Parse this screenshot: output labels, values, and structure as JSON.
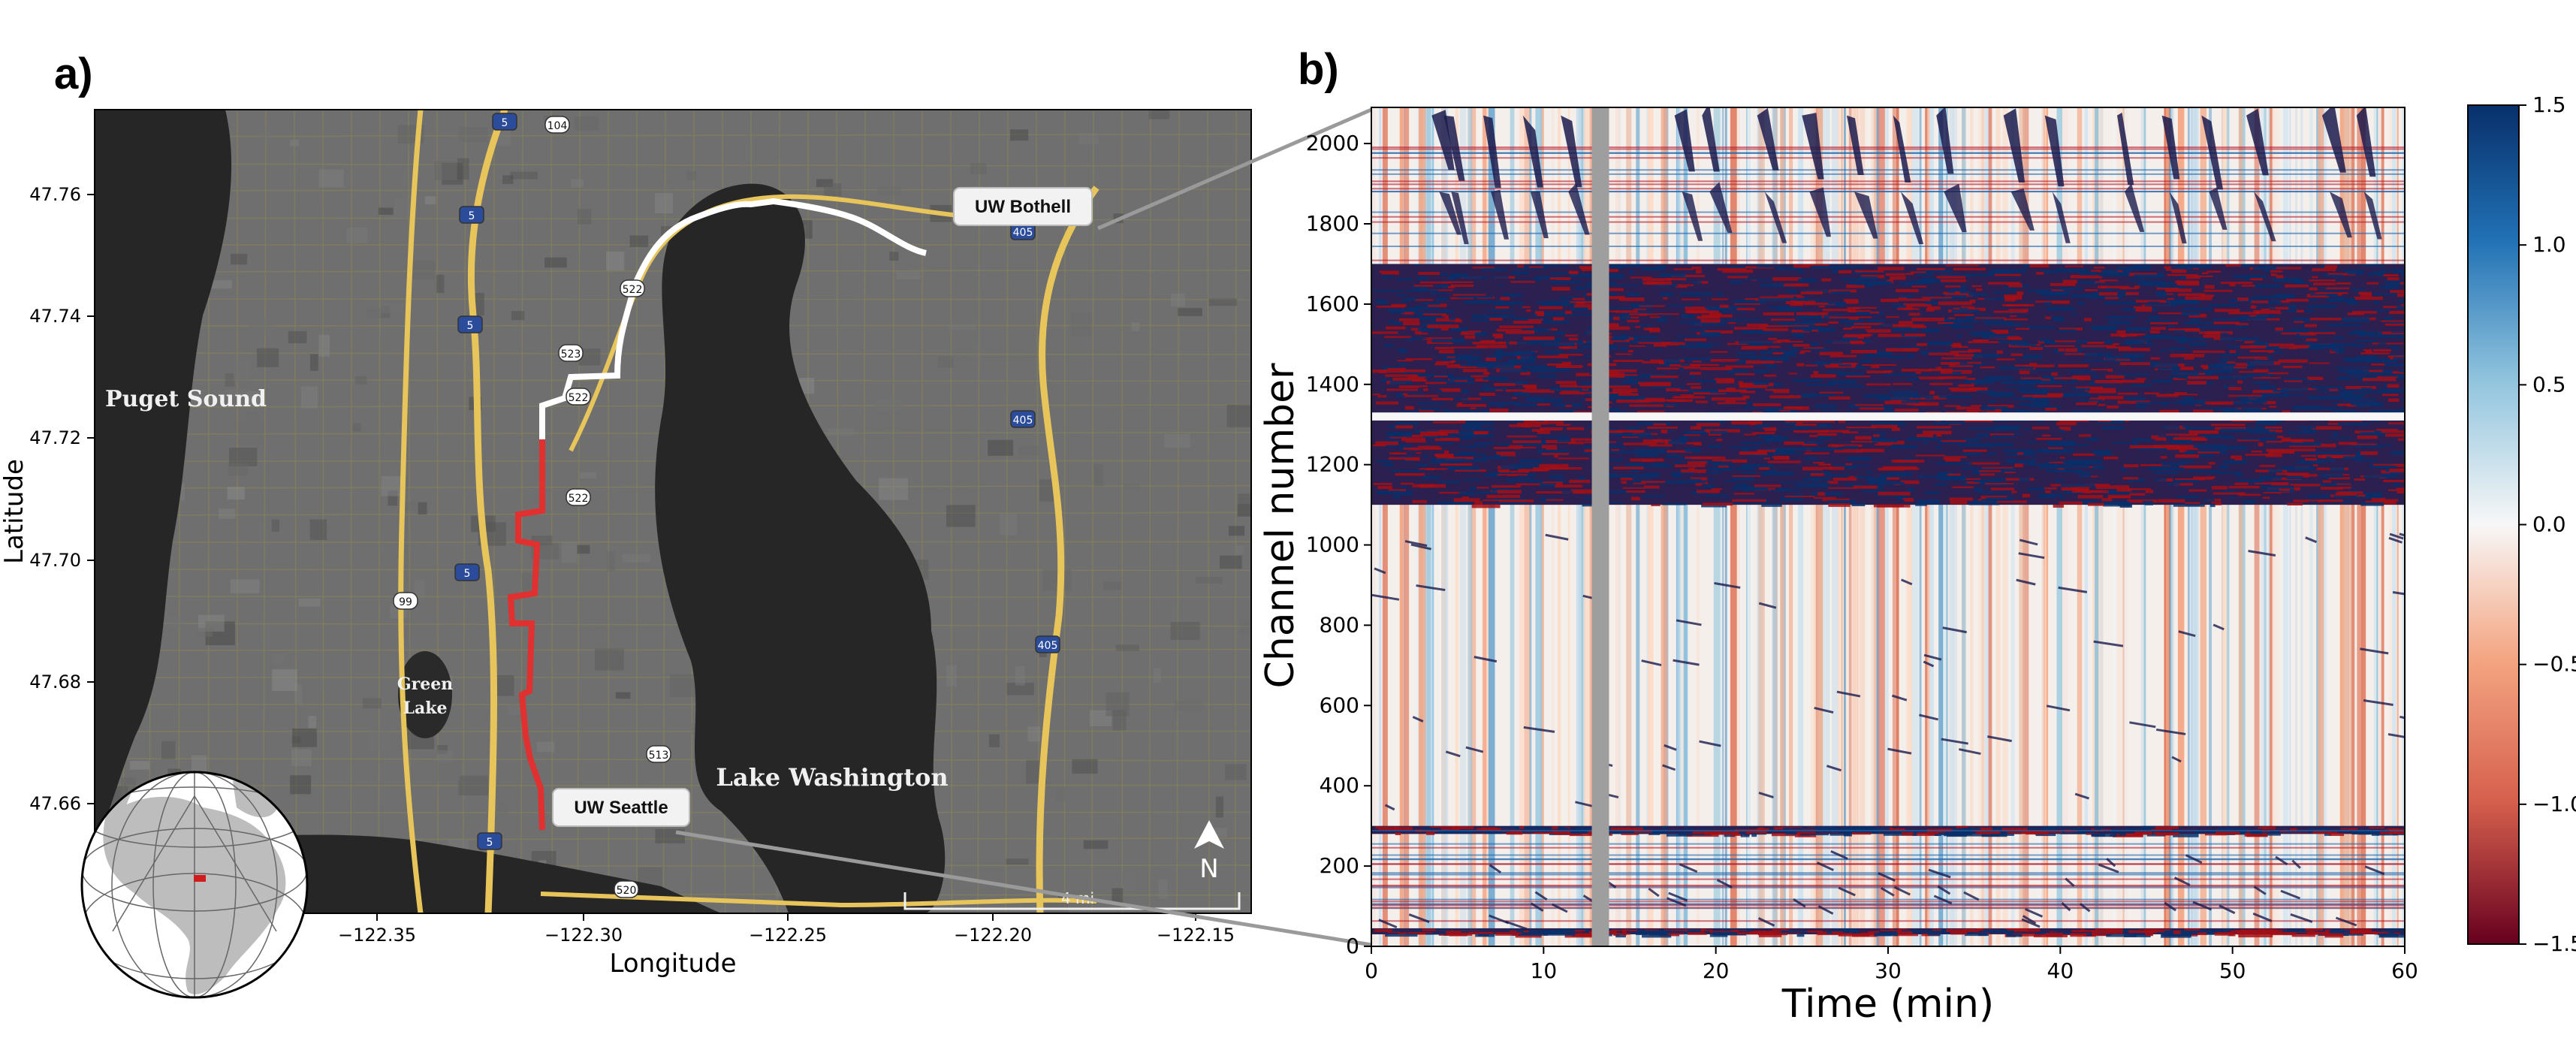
{
  "panels": {
    "a": {
      "letter": "a)",
      "xlabel": "Longitude",
      "ylabel": "Latitude",
      "xticks": [
        "−122.35",
        "−122.30",
        "−122.25",
        "−122.20",
        "−122.15"
      ],
      "yticks": [
        "47.66",
        "47.68",
        "47.70",
        "47.72",
        "47.74",
        "47.76"
      ],
      "places": {
        "puget_sound": "Puget Sound",
        "green_lake_1": "Green",
        "green_lake_2": "Lake",
        "lake_washington": "Lake Washington",
        "uw_bothell": "UW Bothell",
        "uw_seattle": "UW Seattle"
      },
      "scalebar": "4 mi",
      "north": "N",
      "highways": [
        "5",
        "5",
        "5",
        "5",
        "5",
        "104",
        "522",
        "522",
        "522",
        "523",
        "99",
        "405",
        "405",
        "405",
        "513",
        "520"
      ],
      "colors": {
        "fiber_white": "#ffffff",
        "fiber_red": "#e03030",
        "roads": "#e8c55a",
        "water": "#2a2a2a"
      }
    },
    "b": {
      "letter": "b)"
    }
  },
  "chart_data": {
    "type": "heatmap",
    "xlabel": "Time (min)",
    "ylabel": "Channel number",
    "xlim": [
      0,
      60
    ],
    "ylim": [
      0,
      2090
    ],
    "xticks": [
      0,
      10,
      20,
      30,
      40,
      50,
      60
    ],
    "yticks": [
      0,
      200,
      400,
      600,
      800,
      1000,
      1200,
      1400,
      1600,
      1800,
      2000
    ],
    "colorbar": {
      "ticks": [
        1.5,
        1.0,
        0.5,
        0.0,
        -0.5,
        -1.0,
        -1.5
      ],
      "tick_labels": [
        "1.5",
        "1.0",
        "0.5",
        "0.0",
        "−0.5",
        "−1.0",
        "−1.5"
      ],
      "colormap": "RdBu",
      "range": [
        -1.5,
        1.5
      ]
    },
    "gap_time_min": [
      12.8,
      13.8
    ],
    "high_noise_channel_bands": [
      [
        1100,
        1700
      ],
      [
        280,
        300
      ],
      [
        30,
        45
      ]
    ],
    "colors": {
      "positive": "#08306b",
      "negative": "#67001f",
      "gap": "#9e9e9e"
    }
  }
}
